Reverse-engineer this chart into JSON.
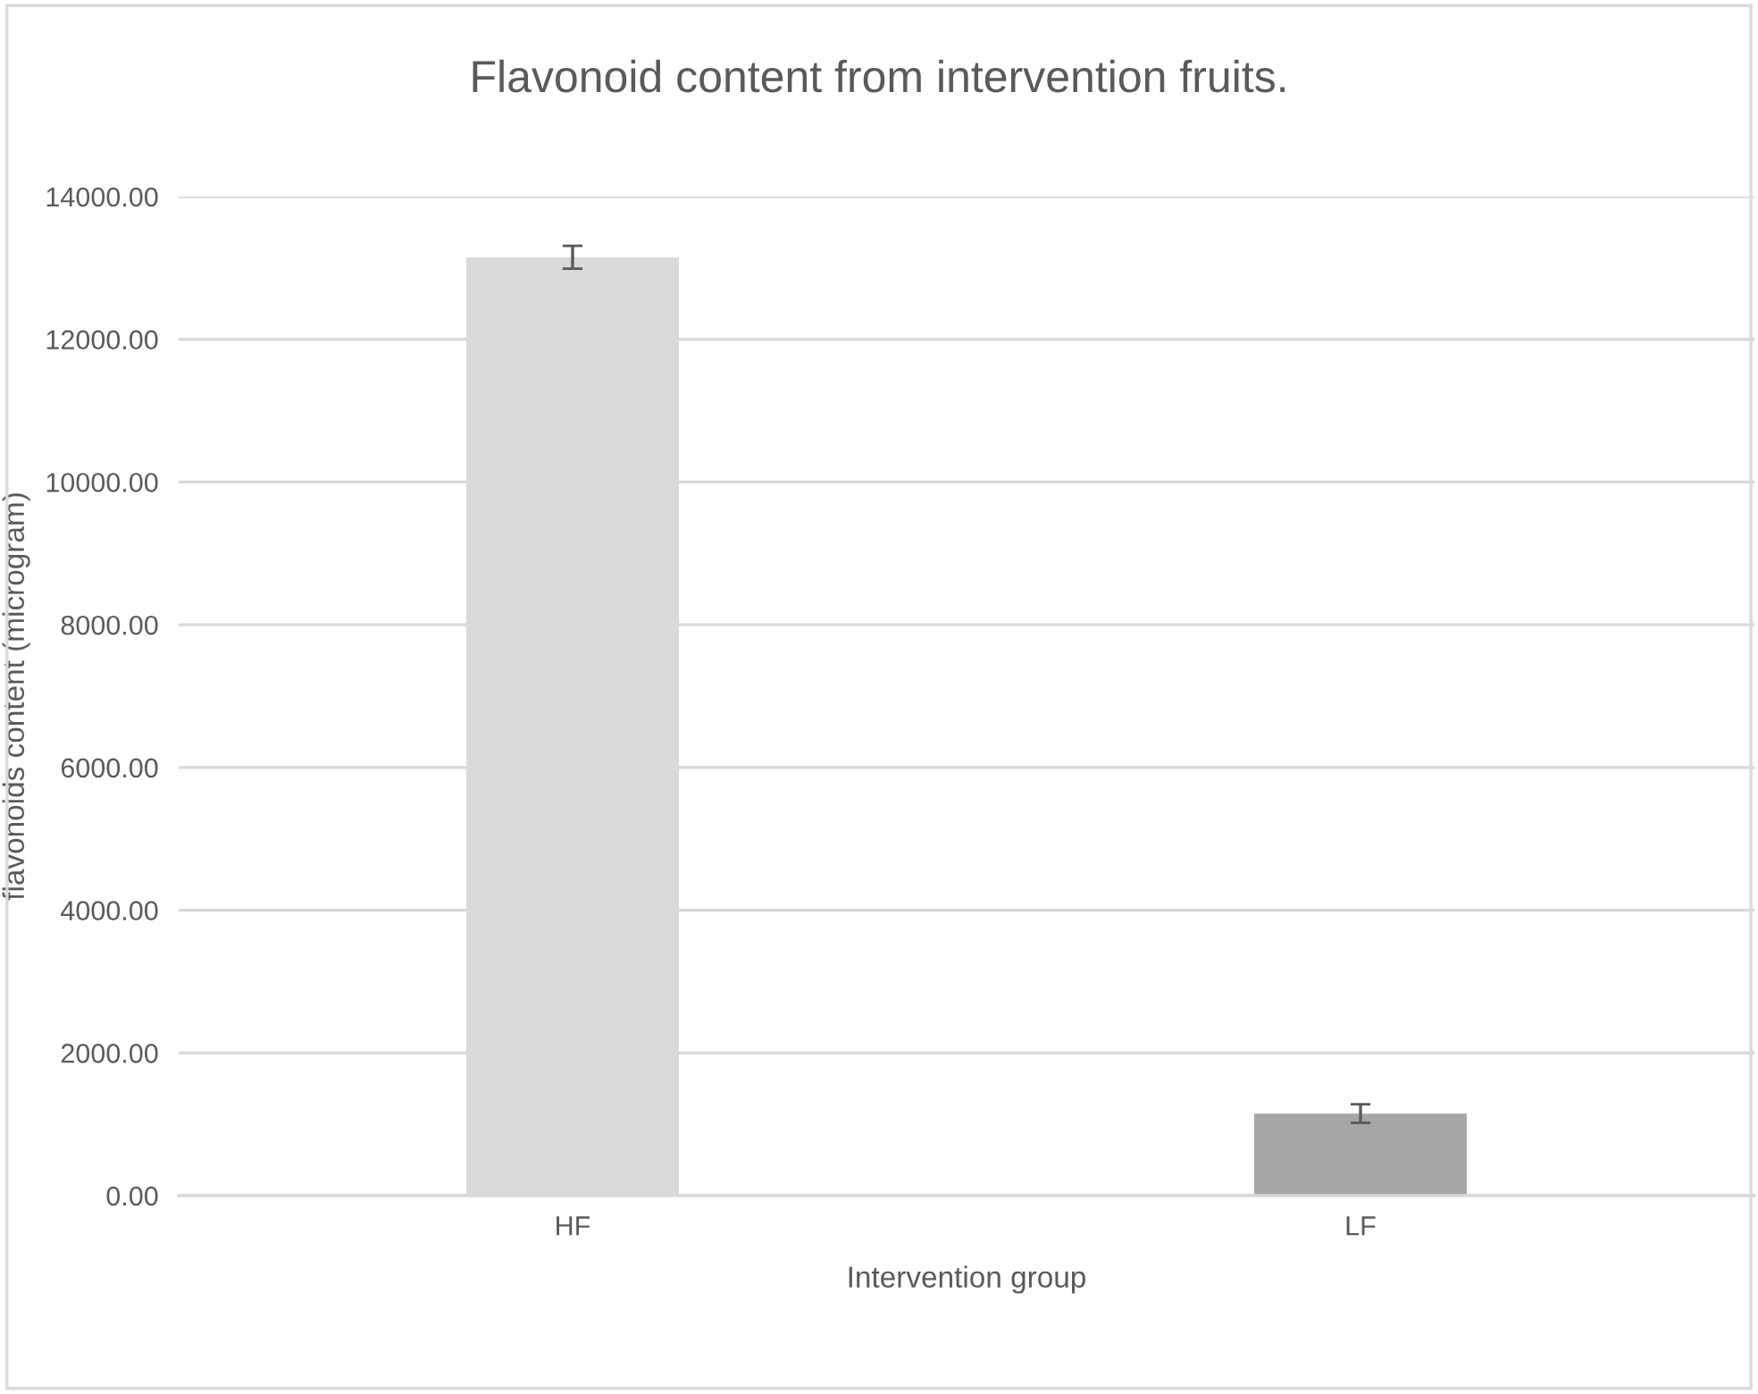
{
  "chart_data": {
    "type": "bar",
    "title": "Flavonoid content from intervention fruits.",
    "xlabel": "Intervention group",
    "ylabel": "flavonoids content (microgram)",
    "categories": [
      "HF",
      "LF"
    ],
    "values": [
      13150,
      1150
    ],
    "errors": [
      160,
      130
    ],
    "colors": [
      "#d9d9d9",
      "#a6a6a6"
    ],
    "ylim": [
      0,
      14000
    ],
    "yticks": [
      {
        "value": 0,
        "label": "0.00"
      },
      {
        "value": 2000,
        "label": "2000.00"
      },
      {
        "value": 4000,
        "label": "4000.00"
      },
      {
        "value": 6000,
        "label": "6000.00"
      },
      {
        "value": 8000,
        "label": "8000.00"
      },
      {
        "value": 10000,
        "label": "10000.00"
      },
      {
        "value": 12000,
        "label": "12000.00"
      },
      {
        "value": 14000,
        "label": "14000.00"
      }
    ],
    "grid": "y",
    "legend": false
  }
}
